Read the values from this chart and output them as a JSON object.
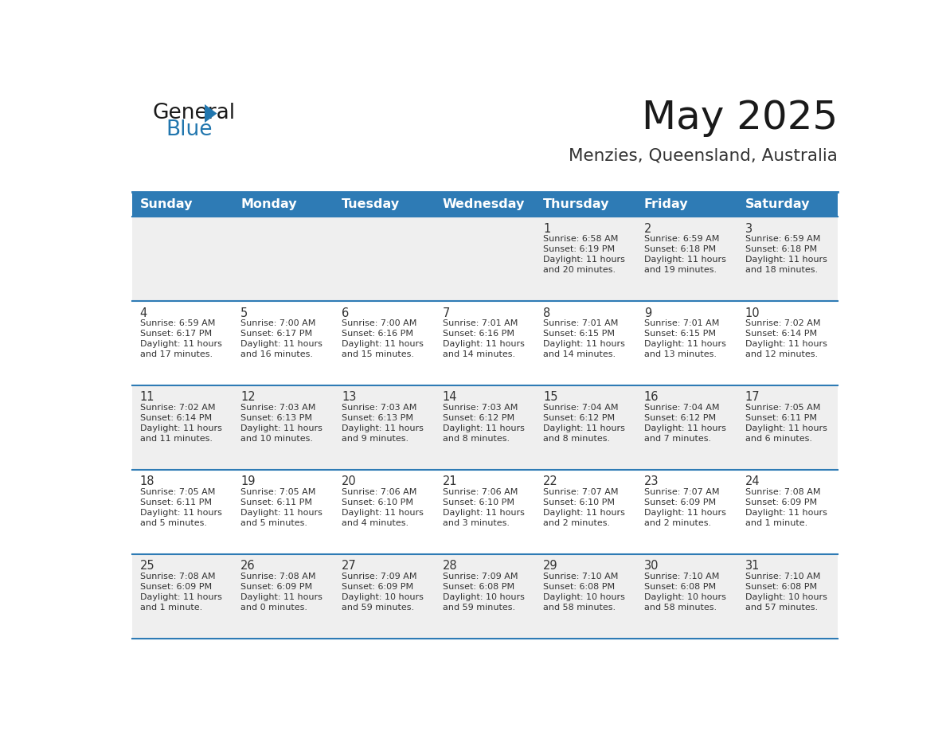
{
  "title": "May 2025",
  "subtitle": "Menzies, Queensland, Australia",
  "days_of_week": [
    "Sunday",
    "Monday",
    "Tuesday",
    "Wednesday",
    "Thursday",
    "Friday",
    "Saturday"
  ],
  "header_bg": "#2E7BB5",
  "header_text": "#FFFFFF",
  "row_bg_odd": "#EFEFEF",
  "row_bg_even": "#FFFFFF",
  "cell_text": "#333333",
  "day_num_color": "#333333",
  "row_border_color": "#2E7BB5",
  "title_color": "#1a1a1a",
  "subtitle_color": "#333333",
  "logo_general_color": "#1a1a1a",
  "logo_blue_color": "#2176AE",
  "calendar_data": [
    [
      {
        "day": null,
        "sunrise": null,
        "sunset": null,
        "daylight": null
      },
      {
        "day": null,
        "sunrise": null,
        "sunset": null,
        "daylight": null
      },
      {
        "day": null,
        "sunrise": null,
        "sunset": null,
        "daylight": null
      },
      {
        "day": null,
        "sunrise": null,
        "sunset": null,
        "daylight": null
      },
      {
        "day": 1,
        "sunrise": "6:58 AM",
        "sunset": "6:19 PM",
        "daylight": "11 hours and 20 minutes."
      },
      {
        "day": 2,
        "sunrise": "6:59 AM",
        "sunset": "6:18 PM",
        "daylight": "11 hours and 19 minutes."
      },
      {
        "day": 3,
        "sunrise": "6:59 AM",
        "sunset": "6:18 PM",
        "daylight": "11 hours and 18 minutes."
      }
    ],
    [
      {
        "day": 4,
        "sunrise": "6:59 AM",
        "sunset": "6:17 PM",
        "daylight": "11 hours and 17 minutes."
      },
      {
        "day": 5,
        "sunrise": "7:00 AM",
        "sunset": "6:17 PM",
        "daylight": "11 hours and 16 minutes."
      },
      {
        "day": 6,
        "sunrise": "7:00 AM",
        "sunset": "6:16 PM",
        "daylight": "11 hours and 15 minutes."
      },
      {
        "day": 7,
        "sunrise": "7:01 AM",
        "sunset": "6:16 PM",
        "daylight": "11 hours and 14 minutes."
      },
      {
        "day": 8,
        "sunrise": "7:01 AM",
        "sunset": "6:15 PM",
        "daylight": "11 hours and 14 minutes."
      },
      {
        "day": 9,
        "sunrise": "7:01 AM",
        "sunset": "6:15 PM",
        "daylight": "11 hours and 13 minutes."
      },
      {
        "day": 10,
        "sunrise": "7:02 AM",
        "sunset": "6:14 PM",
        "daylight": "11 hours and 12 minutes."
      }
    ],
    [
      {
        "day": 11,
        "sunrise": "7:02 AM",
        "sunset": "6:14 PM",
        "daylight": "11 hours and 11 minutes."
      },
      {
        "day": 12,
        "sunrise": "7:03 AM",
        "sunset": "6:13 PM",
        "daylight": "11 hours and 10 minutes."
      },
      {
        "day": 13,
        "sunrise": "7:03 AM",
        "sunset": "6:13 PM",
        "daylight": "11 hours and 9 minutes."
      },
      {
        "day": 14,
        "sunrise": "7:03 AM",
        "sunset": "6:12 PM",
        "daylight": "11 hours and 8 minutes."
      },
      {
        "day": 15,
        "sunrise": "7:04 AM",
        "sunset": "6:12 PM",
        "daylight": "11 hours and 8 minutes."
      },
      {
        "day": 16,
        "sunrise": "7:04 AM",
        "sunset": "6:12 PM",
        "daylight": "11 hours and 7 minutes."
      },
      {
        "day": 17,
        "sunrise": "7:05 AM",
        "sunset": "6:11 PM",
        "daylight": "11 hours and 6 minutes."
      }
    ],
    [
      {
        "day": 18,
        "sunrise": "7:05 AM",
        "sunset": "6:11 PM",
        "daylight": "11 hours and 5 minutes."
      },
      {
        "day": 19,
        "sunrise": "7:05 AM",
        "sunset": "6:11 PM",
        "daylight": "11 hours and 5 minutes."
      },
      {
        "day": 20,
        "sunrise": "7:06 AM",
        "sunset": "6:10 PM",
        "daylight": "11 hours and 4 minutes."
      },
      {
        "day": 21,
        "sunrise": "7:06 AM",
        "sunset": "6:10 PM",
        "daylight": "11 hours and 3 minutes."
      },
      {
        "day": 22,
        "sunrise": "7:07 AM",
        "sunset": "6:10 PM",
        "daylight": "11 hours and 2 minutes."
      },
      {
        "day": 23,
        "sunrise": "7:07 AM",
        "sunset": "6:09 PM",
        "daylight": "11 hours and 2 minutes."
      },
      {
        "day": 24,
        "sunrise": "7:08 AM",
        "sunset": "6:09 PM",
        "daylight": "11 hours and 1 minute."
      }
    ],
    [
      {
        "day": 25,
        "sunrise": "7:08 AM",
        "sunset": "6:09 PM",
        "daylight": "11 hours and 1 minute."
      },
      {
        "day": 26,
        "sunrise": "7:08 AM",
        "sunset": "6:09 PM",
        "daylight": "11 hours and 0 minutes."
      },
      {
        "day": 27,
        "sunrise": "7:09 AM",
        "sunset": "6:09 PM",
        "daylight": "10 hours and 59 minutes."
      },
      {
        "day": 28,
        "sunrise": "7:09 AM",
        "sunset": "6:08 PM",
        "daylight": "10 hours and 59 minutes."
      },
      {
        "day": 29,
        "sunrise": "7:10 AM",
        "sunset": "6:08 PM",
        "daylight": "10 hours and 58 minutes."
      },
      {
        "day": 30,
        "sunrise": "7:10 AM",
        "sunset": "6:08 PM",
        "daylight": "10 hours and 58 minutes."
      },
      {
        "day": 31,
        "sunrise": "7:10 AM",
        "sunset": "6:08 PM",
        "daylight": "10 hours and 57 minutes."
      }
    ]
  ]
}
